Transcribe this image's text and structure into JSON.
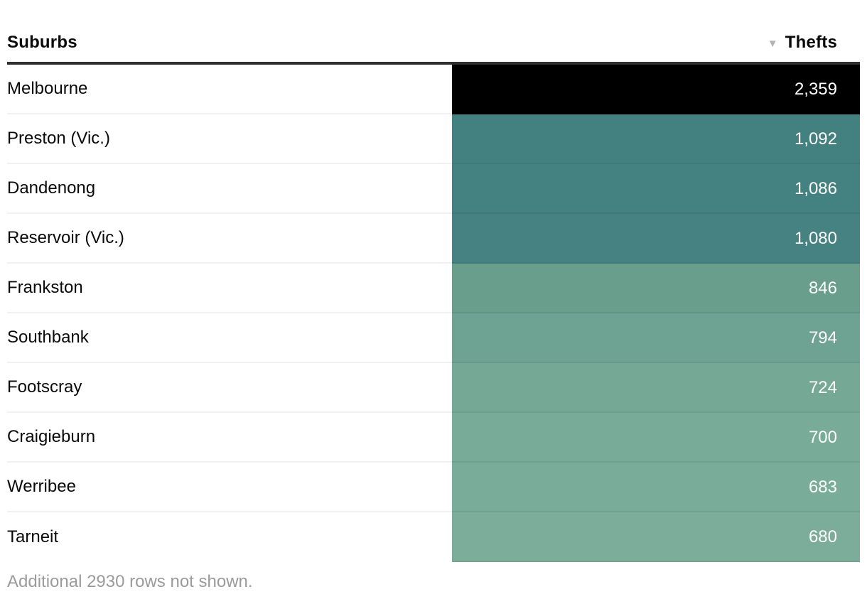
{
  "header": {
    "suburbs_label": "Suburbs",
    "thefts_label": "Thefts",
    "sort_icon": "▼",
    "sort_direction": "descending"
  },
  "rows": [
    {
      "suburb": "Melbourne",
      "thefts": "2,359",
      "bg": "#000000"
    },
    {
      "suburb": "Preston (Vic.)",
      "thefts": "1,092",
      "bg": "#438180"
    },
    {
      "suburb": "Dandenong",
      "thefts": "1,086",
      "bg": "#448181"
    },
    {
      "suburb": "Reservoir (Vic.)",
      "thefts": "1,080",
      "bg": "#458281"
    },
    {
      "suburb": "Frankston",
      "thefts": "846",
      "bg": "#699e8d"
    },
    {
      "suburb": "Southbank",
      "thefts": "794",
      "bg": "#6ea293"
    },
    {
      "suburb": "Footscray",
      "thefts": "724",
      "bg": "#75a996"
    },
    {
      "suburb": "Craigieburn",
      "thefts": "700",
      "bg": "#78ab98"
    },
    {
      "suburb": "Werribee",
      "thefts": "683",
      "bg": "#7aac9a"
    },
    {
      "suburb": "Tarneit",
      "thefts": "680",
      "bg": "#7bad9a"
    }
  ],
  "footer": {
    "note": "Additional 2930 rows not shown."
  },
  "colors": {
    "header_rule": "#2f2f2f",
    "row_separator": "#f1f1f1",
    "label_text": "#0a0a0a",
    "value_text": "#ffffff",
    "footer_text": "#9b9b9b",
    "sort_icon": "#b3b3b3"
  },
  "chart_data": {
    "type": "table",
    "title": "",
    "columns": [
      "Suburbs",
      "Thefts"
    ],
    "sort": {
      "column": "Thefts",
      "direction": "descending"
    },
    "rows": [
      [
        "Melbourne",
        2359
      ],
      [
        "Preston (Vic.)",
        1092
      ],
      [
        "Dandenong",
        1086
      ],
      [
        "Reservoir (Vic.)",
        1080
      ],
      [
        "Frankston",
        846
      ],
      [
        "Southbank",
        794
      ],
      [
        "Footscray",
        724
      ],
      [
        "Craigieburn",
        700
      ],
      [
        "Werribee",
        683
      ],
      [
        "Tarneit",
        680
      ]
    ],
    "additional_rows_not_shown": 2930,
    "color_encoding": "Thefts cell background: sequential scale, light green (low) through teal to black (high)",
    "legend_position": "none",
    "grid": false
  }
}
